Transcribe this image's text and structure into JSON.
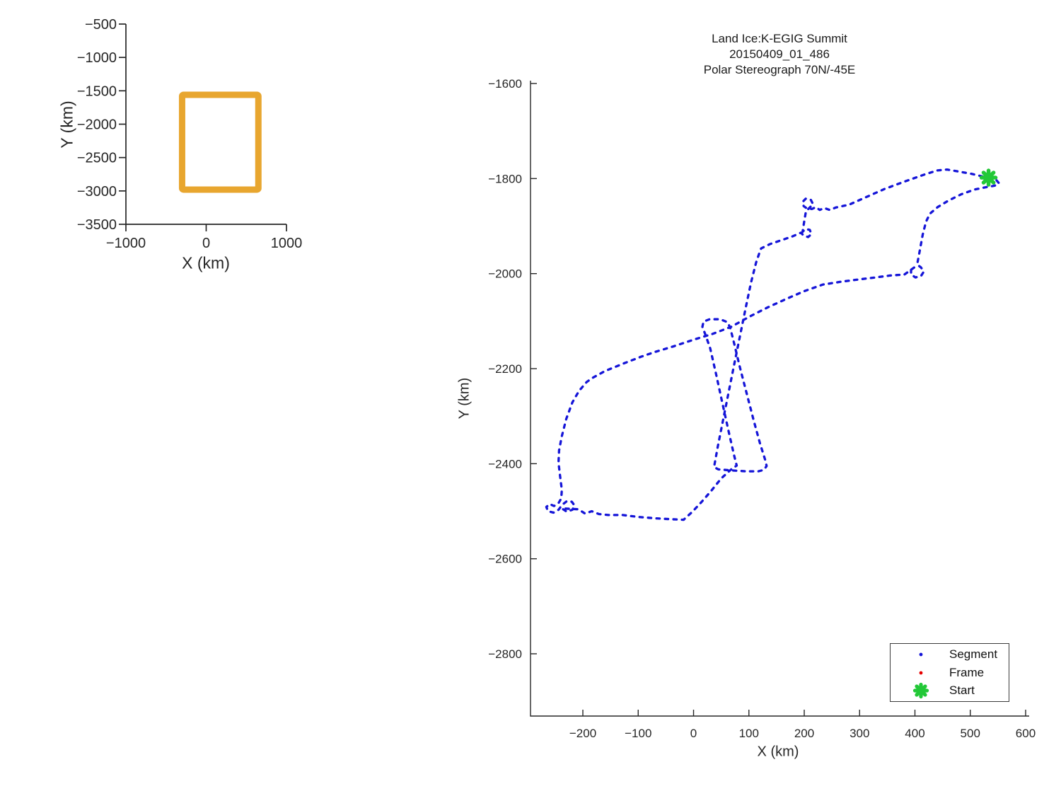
{
  "overview_chart": {
    "type": "line",
    "xlabel": "X (km)",
    "ylabel": "Y (km)",
    "xlim": [
      -1000,
      1000
    ],
    "ylim": [
      -3500,
      -500
    ],
    "xticks": [
      -1000,
      0,
      1000
    ],
    "yticks": [
      -500,
      -1000,
      -1500,
      -2000,
      -2500,
      -3000,
      -3500
    ],
    "grid": false,
    "flight_box": {
      "x_range": [
        -300,
        650
      ],
      "y_range": [
        -2980,
        -1560
      ],
      "color": "#E8A62F"
    }
  },
  "main_chart": {
    "type": "line",
    "title_lines": [
      "Land Ice:K-EGIG Summit",
      "20150409_01_486",
      "Polar Stereograph 70N/-45E"
    ],
    "xlabel": "X (km)",
    "ylabel": "Y (km)",
    "xlim": [
      -294.6,
      606.4
    ],
    "ylim": [
      -2931,
      -1594
    ],
    "xticks": [
      -200,
      -100,
      0,
      100,
      200,
      300,
      400,
      500,
      600
    ],
    "yticks": [
      -1600,
      -1800,
      -2000,
      -2200,
      -2400,
      -2600,
      -2800
    ],
    "grid": false,
    "legend": {
      "position": "bottom-right",
      "entries": [
        {
          "label": "Segment",
          "marker": "dot",
          "color": "#1515D8"
        },
        {
          "label": "Frame",
          "marker": "dot",
          "color": "#E60000"
        },
        {
          "label": "Start",
          "marker": "star",
          "color": "#22C837"
        }
      ]
    },
    "chart_data": {
      "series": [
        {
          "name": "Segment",
          "style": "dotted",
          "color": "#1515D8",
          "points": [
            [
              533,
              -1798
            ],
            [
              547,
              -1803
            ],
            [
              552,
              -1810
            ],
            [
              544,
              -1815
            ],
            [
              529,
              -1818
            ],
            [
              508,
              -1823
            ],
            [
              484,
              -1833
            ],
            [
              461,
              -1846
            ],
            [
              441,
              -1860
            ],
            [
              427,
              -1874
            ],
            [
              420,
              -1891
            ],
            [
              414,
              -1918
            ],
            [
              408,
              -1956
            ],
            [
              404,
              -1981
            ],
            [
              411,
              -1987
            ],
            [
              416,
              -1996
            ],
            [
              411,
              -2005
            ],
            [
              401,
              -2008
            ],
            [
              393,
              -2002
            ],
            [
              393,
              -1992
            ],
            [
              400,
              -1986
            ],
            [
              381,
              -2002
            ],
            [
              355,
              -2004
            ],
            [
              329,
              -2008
            ],
            [
              300,
              -2012
            ],
            [
              267,
              -2017
            ],
            [
              234,
              -2023
            ],
            [
              200,
              -2037
            ],
            [
              168,
              -2053
            ],
            [
              134,
              -2071
            ],
            [
              102,
              -2090
            ],
            [
              68,
              -2112
            ],
            [
              34,
              -2127
            ],
            [
              0,
              -2139
            ],
            [
              -36,
              -2153
            ],
            [
              -70,
              -2165
            ],
            [
              -95,
              -2175
            ],
            [
              -126,
              -2189
            ],
            [
              -160,
              -2205
            ],
            [
              -182,
              -2219
            ],
            [
              -193,
              -2228
            ],
            [
              -207,
              -2247
            ],
            [
              -219,
              -2271
            ],
            [
              -230,
              -2306
            ],
            [
              -238,
              -2342
            ],
            [
              -243,
              -2372
            ],
            [
              -244,
              -2398
            ],
            [
              -241,
              -2427
            ],
            [
              -238,
              -2455
            ],
            [
              -239,
              -2473
            ],
            [
              -244,
              -2483
            ],
            [
              -252,
              -2489
            ],
            [
              -260,
              -2485
            ],
            [
              -266,
              -2491
            ],
            [
              -263,
              -2500
            ],
            [
              -253,
              -2503
            ],
            [
              -244,
              -2497
            ],
            [
              -237,
              -2486
            ],
            [
              -229,
              -2479
            ],
            [
              -220,
              -2480
            ],
            [
              -215,
              -2488
            ],
            [
              -219,
              -2497
            ],
            [
              -229,
              -2501
            ],
            [
              -238,
              -2494
            ],
            [
              -208,
              -2496
            ],
            [
              -196,
              -2505
            ],
            [
              -184,
              -2500
            ],
            [
              -171,
              -2506
            ],
            [
              -154,
              -2508
            ],
            [
              -128,
              -2508
            ],
            [
              -100,
              -2512
            ],
            [
              -68,
              -2515
            ],
            [
              -38,
              -2517
            ],
            [
              -18,
              -2518
            ],
            [
              -2,
              -2501
            ],
            [
              14,
              -2481
            ],
            [
              32,
              -2457
            ],
            [
              50,
              -2431
            ],
            [
              68,
              -2412
            ],
            [
              78,
              -2404
            ],
            [
              73,
              -2381
            ],
            [
              63,
              -2330
            ],
            [
              52,
              -2272
            ],
            [
              41,
              -2213
            ],
            [
              30,
              -2157
            ],
            [
              21,
              -2127
            ],
            [
              16,
              -2112
            ],
            [
              18,
              -2101
            ],
            [
              29,
              -2096
            ],
            [
              48,
              -2096
            ],
            [
              61,
              -2102
            ],
            [
              66,
              -2113
            ],
            [
              73,
              -2145
            ],
            [
              84,
              -2198
            ],
            [
              96,
              -2252
            ],
            [
              108,
              -2306
            ],
            [
              120,
              -2357
            ],
            [
              130,
              -2394
            ],
            [
              132,
              -2405
            ],
            [
              127,
              -2413
            ],
            [
              117,
              -2416
            ],
            [
              95,
              -2416
            ],
            [
              68,
              -2414
            ],
            [
              45,
              -2412
            ],
            [
              37,
              -2407
            ],
            [
              44,
              -2363
            ],
            [
              54,
              -2304
            ],
            [
              64,
              -2246
            ],
            [
              74,
              -2188
            ],
            [
              84,
              -2131
            ],
            [
              94,
              -2073
            ],
            [
              104,
              -2018
            ],
            [
              113,
              -1977
            ],
            [
              120,
              -1953
            ],
            [
              122,
              -1947
            ],
            [
              138,
              -1938
            ],
            [
              158,
              -1930
            ],
            [
              178,
              -1922
            ],
            [
              194,
              -1914
            ],
            [
              199,
              -1920
            ],
            [
              207,
              -1923
            ],
            [
              213,
              -1917
            ],
            [
              210,
              -1908
            ],
            [
              202,
              -1906
            ],
            [
              197,
              -1912
            ],
            [
              200,
              -1890
            ],
            [
              203,
              -1869
            ],
            [
              210,
              -1861
            ],
            [
              216,
              -1854
            ],
            [
              212,
              -1845
            ],
            [
              203,
              -1842
            ],
            [
              197,
              -1849
            ],
            [
              199,
              -1858
            ],
            [
              205,
              -1863
            ],
            [
              214,
              -1864
            ],
            [
              221,
              -1860
            ],
            [
              228,
              -1866
            ],
            [
              236,
              -1862
            ],
            [
              246,
              -1866
            ],
            [
              257,
              -1861
            ],
            [
              269,
              -1858
            ],
            [
              281,
              -1855
            ],
            [
              310,
              -1840
            ],
            [
              345,
              -1822
            ],
            [
              382,
              -1806
            ],
            [
              416,
              -1792
            ],
            [
              440,
              -1783
            ],
            [
              458,
              -1781
            ],
            [
              478,
              -1785
            ],
            [
              502,
              -1790
            ],
            [
              520,
              -1795
            ],
            [
              533,
              -1798
            ]
          ]
        },
        {
          "name": "Frame",
          "style": "dot",
          "color": "#E60000",
          "points": []
        },
        {
          "name": "Start",
          "style": "star",
          "color": "#22C837",
          "points": [
            [
              533,
              -1798
            ]
          ]
        }
      ]
    }
  }
}
